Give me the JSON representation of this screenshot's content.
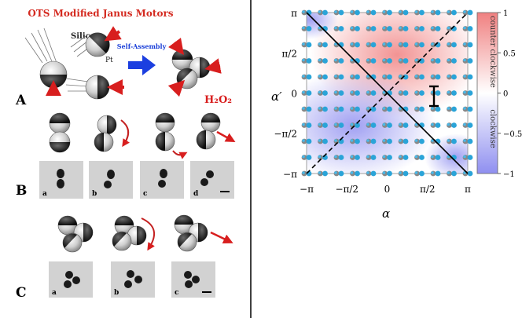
{
  "left_panel": {
    "title": "OTS Modified Janus Motors",
    "silica_label": "Silica",
    "pt_label": "Pt",
    "self_assembly_label": "Self-Assembly",
    "h2o2_label": "H₂O₂",
    "panel_letters": [
      "A",
      "B",
      "C"
    ],
    "sub_labels_b": [
      "a",
      "b",
      "c",
      "d"
    ],
    "sub_labels_c": [
      "a",
      "b",
      "c"
    ]
  },
  "right_panel": {
    "chart_data": {
      "type": "heatmap",
      "xlabel": "α",
      "ylabel": "α′",
      "x_ticks": [
        "−π",
        "−π/2",
        "0",
        "π/2",
        "π"
      ],
      "y_ticks": [
        "π",
        "π/2",
        "0",
        "−π/2",
        "−π"
      ],
      "xlim": [
        -3.1416,
        3.1416
      ],
      "ylim": [
        -3.1416,
        3.1416
      ],
      "grid_points_per_axis": 11,
      "colorbar": {
        "range": [
          -1,
          1
        ],
        "ticks": [
          "1",
          "0.5",
          "0",
          "−0.5",
          "−1"
        ],
        "label_top": "counter clockwise",
        "label_bottom": "clockwise",
        "color_positive": "#f08080",
        "color_negative": "#8f8ff0"
      },
      "diagonal_solid": "α′ = −α",
      "diagonal_dashed": "α′ = α − π",
      "marker_label": "I"
    }
  },
  "colors": {
    "title_red": "#d42a20",
    "self_assembly_blue": "#1a3fd8",
    "arrow_blue": "#1c3fe0",
    "arrow_red": "#d81e1e"
  }
}
